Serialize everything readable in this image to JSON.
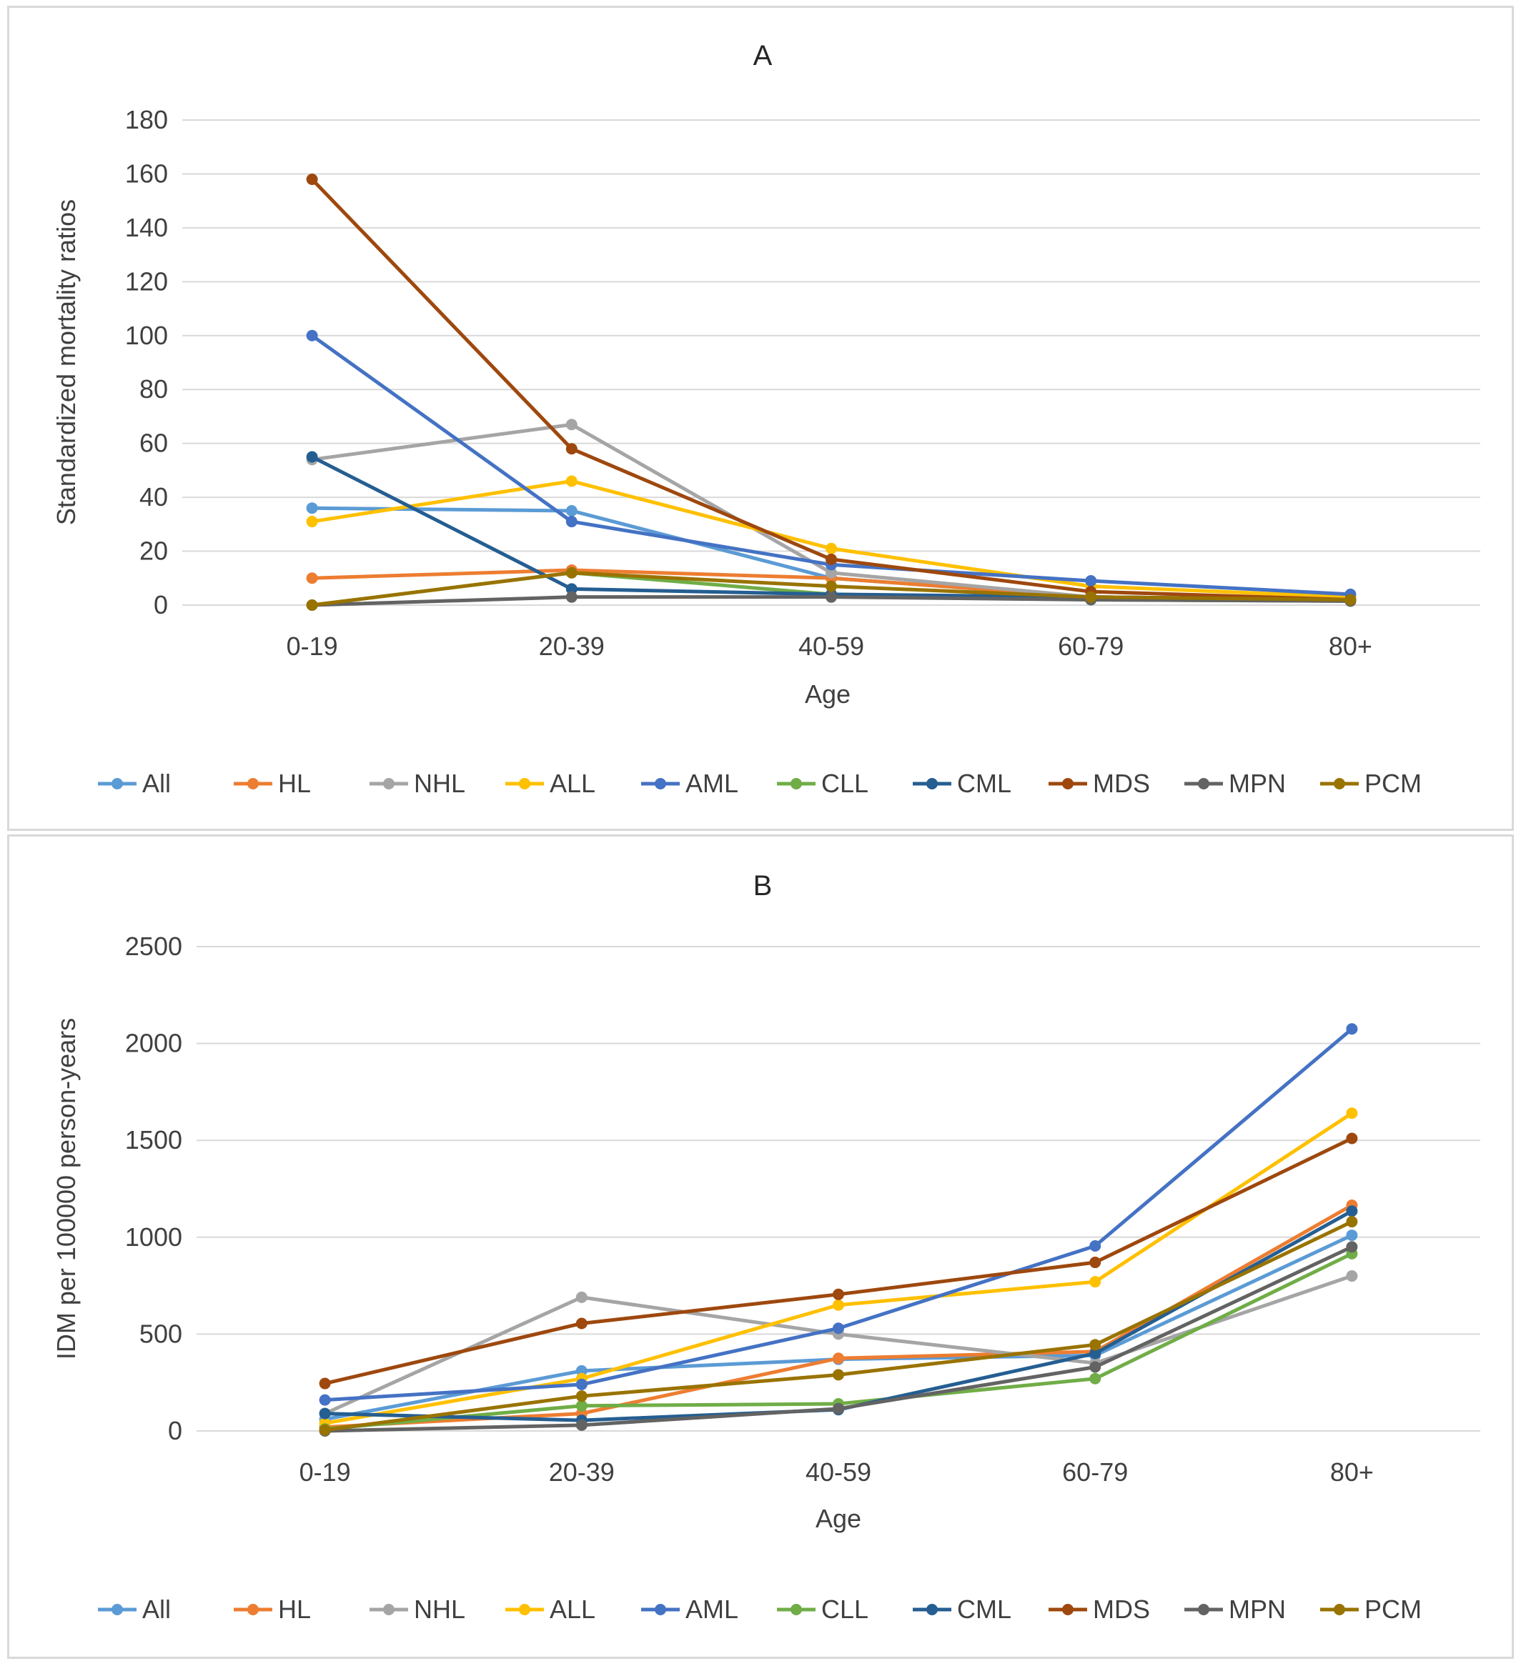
{
  "chart_data": [
    {
      "type": "line",
      "title": "A",
      "xlabel": "Age",
      "ylabel": "Standardized mortality ratios",
      "categories": [
        "0-19",
        "20-39",
        "40-59",
        "60-79",
        "80+"
      ],
      "ylim": [
        0,
        180
      ],
      "yticks": [
        0,
        20,
        40,
        60,
        80,
        100,
        120,
        140,
        160,
        180
      ],
      "grid": true,
      "legend_position": "bottom",
      "series": [
        {
          "name": "All",
          "color": "#5b9bd5",
          "values": [
            36,
            35,
            10,
            3,
            2
          ]
        },
        {
          "name": "HL",
          "color": "#ed7d31",
          "values": [
            10,
            13,
            10,
            3,
            2
          ]
        },
        {
          "name": "NHL",
          "color": "#a5a5a5",
          "values": [
            54,
            67,
            12,
            3,
            2
          ]
        },
        {
          "name": "ALL",
          "color": "#ffc000",
          "values": [
            31,
            46,
            21,
            7,
            3
          ]
        },
        {
          "name": "AML",
          "color": "#4472c4",
          "values": [
            100,
            31,
            15,
            9,
            4
          ]
        },
        {
          "name": "CLL",
          "color": "#70ad47",
          "values": [
            0,
            12,
            4,
            2,
            1.5
          ]
        },
        {
          "name": "CML",
          "color": "#255e91",
          "values": [
            55,
            6,
            4,
            3,
            2
          ]
        },
        {
          "name": "MDS",
          "color": "#9e480e",
          "values": [
            158,
            58,
            17,
            5,
            2
          ]
        },
        {
          "name": "MPN",
          "color": "#636363",
          "values": [
            0,
            3,
            3,
            2,
            1.5
          ]
        },
        {
          "name": "PCM",
          "color": "#997300",
          "values": [
            0,
            12,
            7,
            3,
            2
          ]
        }
      ]
    },
    {
      "type": "line",
      "title": "B",
      "xlabel": "Age",
      "ylabel": "IDM per 100000 person-years",
      "categories": [
        "0-19",
        "20-39",
        "40-59",
        "60-79",
        "80+"
      ],
      "ylim": [
        0,
        2500
      ],
      "yticks": [
        0,
        500,
        1000,
        1500,
        2000,
        2500
      ],
      "grid": true,
      "legend_position": "bottom",
      "series": [
        {
          "name": "All",
          "color": "#5b9bd5",
          "values": [
            60,
            310,
            370,
            390,
            1010
          ]
        },
        {
          "name": "HL",
          "color": "#ed7d31",
          "values": [
            20,
            90,
            375,
            410,
            1165
          ]
        },
        {
          "name": "NHL",
          "color": "#a5a5a5",
          "values": [
            90,
            690,
            500,
            350,
            800
          ]
        },
        {
          "name": "ALL",
          "color": "#ffc000",
          "values": [
            40,
            270,
            650,
            770,
            1640
          ]
        },
        {
          "name": "AML",
          "color": "#4472c4",
          "values": [
            160,
            240,
            530,
            955,
            2075
          ]
        },
        {
          "name": "CLL",
          "color": "#70ad47",
          "values": [
            10,
            130,
            140,
            270,
            915
          ]
        },
        {
          "name": "CML",
          "color": "#255e91",
          "values": [
            90,
            55,
            110,
            400,
            1135
          ]
        },
        {
          "name": "MDS",
          "color": "#9e480e",
          "values": [
            245,
            555,
            705,
            870,
            1510
          ]
        },
        {
          "name": "MPN",
          "color": "#636363",
          "values": [
            0,
            30,
            115,
            330,
            950
          ]
        },
        {
          "name": "PCM",
          "color": "#997300",
          "values": [
            5,
            180,
            290,
            445,
            1080
          ]
        }
      ]
    }
  ]
}
